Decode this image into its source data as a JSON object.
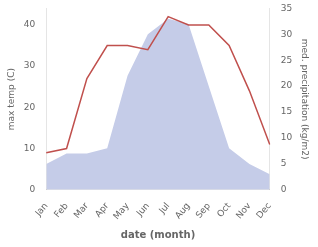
{
  "chart_data": {
    "type": "line",
    "xlabel": "date (month)",
    "ylabel": "max temp (C)",
    "y2label": "med. precipitation (kg/m2)",
    "categories": [
      "Jan",
      "Feb",
      "Mar",
      "Apr",
      "May",
      "Jun",
      "Jul",
      "Aug",
      "Sep",
      "Oct",
      "Nov",
      "Dec"
    ],
    "series": [
      {
        "type": "area",
        "axis": "y2",
        "color": "#c5cce8",
        "values": [
          5,
          7,
          7,
          8,
          22,
          30,
          33,
          32,
          20,
          8,
          5,
          3
        ]
      },
      {
        "type": "line",
        "color": "#c0504d",
        "values": [
          9,
          10,
          27,
          35,
          35,
          34,
          42,
          40,
          40,
          35,
          24,
          11
        ]
      }
    ],
    "ylim": [
      0,
      44
    ],
    "yticks": [
      0,
      10,
      20,
      30,
      40
    ],
    "y2lim": [
      0,
      35
    ],
    "y2ticks": [
      0,
      5,
      10,
      15,
      20,
      25,
      30,
      35
    ],
    "grid": false
  }
}
